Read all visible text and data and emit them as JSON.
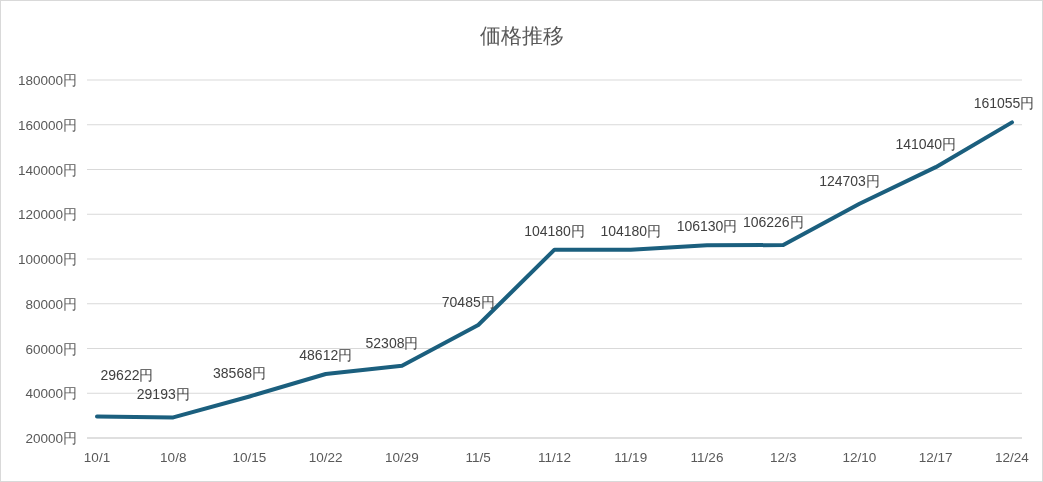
{
  "chart_data": {
    "type": "line",
    "title": "価格推移",
    "categories": [
      "10/1",
      "10/8",
      "10/15",
      "10/22",
      "10/29",
      "11/5",
      "11/12",
      "11/19",
      "11/26",
      "12/3",
      "12/10",
      "12/17",
      "12/24"
    ],
    "series": [
      {
        "color": "#1b5f7e",
        "values": [
          29622,
          29193,
          38568,
          48612,
          52308,
          70485,
          104180,
          104180,
          106130,
          106226,
          124703,
          141040,
          161055
        ],
        "value_labels": [
          "29622円",
          "29193円",
          "38568円",
          "48612円",
          "52308円",
          "70485円",
          "104180円",
          "104180円",
          "106130円",
          "106226円",
          "124703円",
          "141040円",
          "161055円"
        ]
      }
    ],
    "ylim": [
      20000,
      180000
    ],
    "yticks": [
      {
        "value": 20000,
        "label": "20000円"
      },
      {
        "value": 40000,
        "label": "40000円"
      },
      {
        "value": 60000,
        "label": "60000円"
      },
      {
        "value": 80000,
        "label": "80000円"
      },
      {
        "value": 100000,
        "label": "100000円"
      },
      {
        "value": 120000,
        "label": "120000円"
      },
      {
        "value": 140000,
        "label": "140000円"
      },
      {
        "value": 160000,
        "label": "160000円"
      },
      {
        "value": 180000,
        "label": "180000円"
      }
    ],
    "grid": "y",
    "marker": "none",
    "line_style": "solid"
  }
}
